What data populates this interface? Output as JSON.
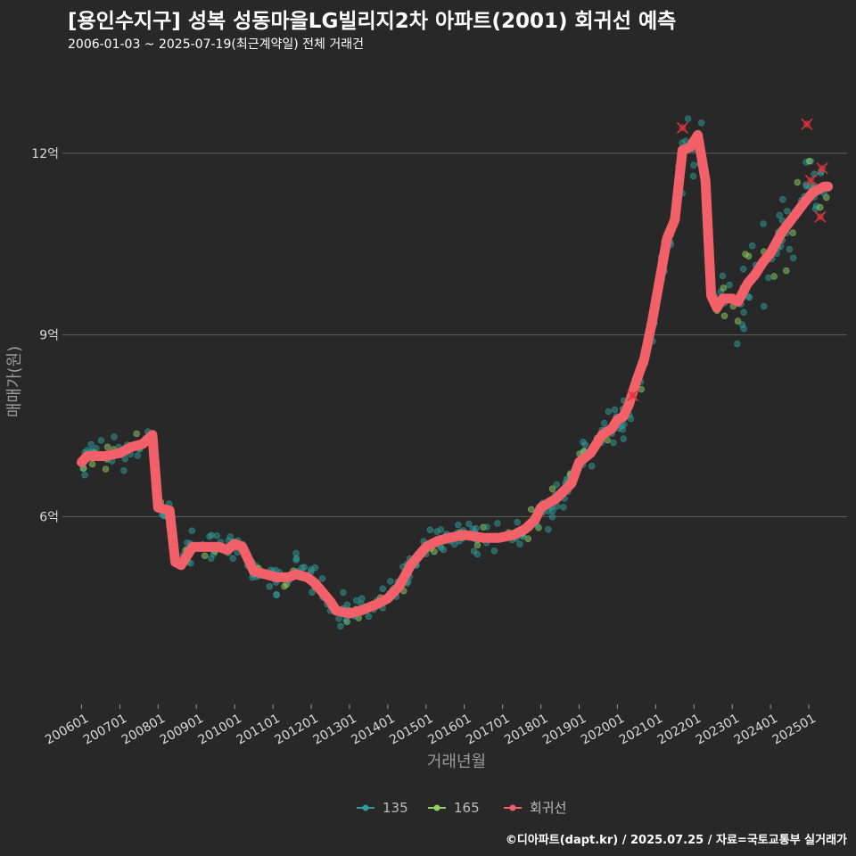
{
  "title": "[용인수지구] 성복 성동마을LG빌리지2차 아파트(2001) 회귀선 예측",
  "subtitle": "2006-01-03 ~ 2025-07-19(최근계약일) 전체 거래건",
  "footer": "©디아파트(dapt.kr) / 2025.07.25 / 자료=국토교통부 실거래가",
  "colors": {
    "background": "#282828",
    "grid": "#5e5e5e",
    "series_135": "#2f9d9a",
    "series_165": "#8fce62",
    "regression": "#f2606a",
    "outlier": "#d9353c"
  },
  "chart_data": {
    "type": "line",
    "xlabel": "거래년월",
    "ylabel": "매매가(원)",
    "x_range": [
      "2006-01",
      "2025-07"
    ],
    "ylim": [
      2.9,
      13.5
    ],
    "y_unit": "억",
    "y_ticks": [
      {
        "value": 6,
        "label": "6억"
      },
      {
        "value": 9,
        "label": "9억"
      },
      {
        "value": 12,
        "label": "12억"
      }
    ],
    "x_ticks": [
      "200601",
      "200701",
      "200801",
      "200901",
      "201001",
      "201101",
      "201201",
      "201301",
      "201401",
      "201501",
      "201601",
      "201701",
      "201801",
      "201901",
      "202001",
      "202101",
      "202201",
      "202301",
      "202401",
      "202501"
    ],
    "grid": "horizontal",
    "legend": {
      "position": "bottom",
      "items": [
        {
          "label": "135",
          "color": "#2f9d9a",
          "shape": "point-line"
        },
        {
          "label": "165",
          "color": "#8fce62",
          "shape": "point-line"
        },
        {
          "label": "회귀선",
          "color": "#f2606a",
          "shape": "point-line"
        }
      ]
    },
    "series": [
      {
        "name": "회귀선",
        "type": "line",
        "color": "#f2606a",
        "points": [
          [
            2006.0,
            6.9
          ],
          [
            2006.15,
            7.0
          ],
          [
            2006.6,
            7.0
          ],
          [
            2007.0,
            7.05
          ],
          [
            2007.3,
            7.15
          ],
          [
            2007.6,
            7.2
          ],
          [
            2007.85,
            7.35
          ],
          [
            2008.0,
            6.15
          ],
          [
            2008.3,
            6.1
          ],
          [
            2008.45,
            5.25
          ],
          [
            2008.6,
            5.2
          ],
          [
            2008.9,
            5.5
          ],
          [
            2009.6,
            5.5
          ],
          [
            2009.8,
            5.45
          ],
          [
            2010.0,
            5.55
          ],
          [
            2010.2,
            5.5
          ],
          [
            2010.5,
            5.1
          ],
          [
            2010.8,
            5.05
          ],
          [
            2011.1,
            5.0
          ],
          [
            2011.4,
            5.0
          ],
          [
            2011.6,
            5.05
          ],
          [
            2011.9,
            5.0
          ],
          [
            2012.1,
            4.9
          ],
          [
            2012.3,
            4.75
          ],
          [
            2012.5,
            4.6
          ],
          [
            2012.65,
            4.45
          ],
          [
            2013.0,
            4.4
          ],
          [
            2013.3,
            4.45
          ],
          [
            2013.7,
            4.55
          ],
          [
            2014.0,
            4.65
          ],
          [
            2014.3,
            4.85
          ],
          [
            2014.6,
            5.2
          ],
          [
            2014.8,
            5.35
          ],
          [
            2015.0,
            5.5
          ],
          [
            2015.3,
            5.6
          ],
          [
            2015.6,
            5.65
          ],
          [
            2016.0,
            5.7
          ],
          [
            2016.5,
            5.65
          ],
          [
            2016.9,
            5.65
          ],
          [
            2017.3,
            5.7
          ],
          [
            2017.6,
            5.8
          ],
          [
            2017.85,
            5.95
          ],
          [
            2018.0,
            6.15
          ],
          [
            2018.4,
            6.3
          ],
          [
            2018.8,
            6.55
          ],
          [
            2019.0,
            6.9
          ],
          [
            2019.3,
            7.05
          ],
          [
            2019.6,
            7.35
          ],
          [
            2019.85,
            7.45
          ],
          [
            2020.0,
            7.6
          ],
          [
            2020.15,
            7.65
          ],
          [
            2020.3,
            7.85
          ],
          [
            2020.5,
            8.25
          ],
          [
            2020.7,
            8.6
          ],
          [
            2020.9,
            9.2
          ],
          [
            2021.1,
            9.9
          ],
          [
            2021.3,
            10.6
          ],
          [
            2021.5,
            10.9
          ],
          [
            2021.7,
            12.05
          ],
          [
            2021.9,
            12.1
          ],
          [
            2022.1,
            12.3
          ],
          [
            2022.3,
            11.55
          ],
          [
            2022.45,
            9.65
          ],
          [
            2022.6,
            9.45
          ],
          [
            2022.75,
            9.6
          ],
          [
            2023.0,
            9.6
          ],
          [
            2023.15,
            9.55
          ],
          [
            2023.4,
            9.85
          ],
          [
            2023.6,
            10.0
          ],
          [
            2023.8,
            10.2
          ],
          [
            2024.0,
            10.35
          ],
          [
            2024.3,
            10.7
          ],
          [
            2024.6,
            10.95
          ],
          [
            2024.9,
            11.2
          ],
          [
            2025.1,
            11.35
          ],
          [
            2025.4,
            11.45
          ],
          [
            2025.5,
            11.45
          ]
        ]
      }
    ],
    "outliers": [
      [
        2021.7,
        12.42
      ],
      [
        2024.95,
        12.48
      ],
      [
        2025.35,
        11.75
      ],
      [
        2025.05,
        11.55
      ],
      [
        2025.3,
        10.95
      ],
      [
        2020.4,
        8.0
      ]
    ]
  }
}
